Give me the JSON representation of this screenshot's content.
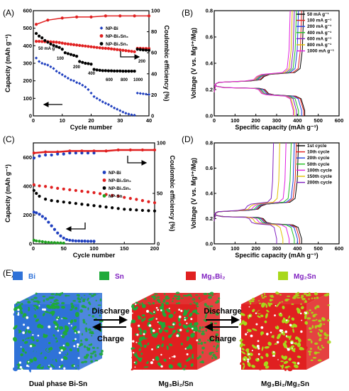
{
  "panels": {
    "A": "(A)",
    "B": "(B)",
    "C": "(C)",
    "D": "(D)",
    "E": "(E)"
  },
  "chart_data": [
    {
      "id": "A",
      "type": "scatter",
      "xlabel": "Cycle number",
      "ylabel": "Capacity (mAh g⁻¹)",
      "y2label": "Coulombic efficiency (%)",
      "xlim": [
        0,
        40
      ],
      "ylim": [
        0,
        600
      ],
      "y2lim": [
        0,
        100
      ],
      "xticks": [
        0,
        10,
        20,
        30,
        40
      ],
      "yticks": [
        0,
        100,
        200,
        300,
        400,
        500,
        600
      ],
      "y2ticks": [
        0,
        20,
        40,
        60,
        80,
        100
      ],
      "legend": [
        "NP-Bi",
        "NP-Bi₂Sn₃",
        "NP-Bi₁Sn₁"
      ],
      "rate_annotations": [
        "50 mA g⁻¹",
        "100",
        "200",
        "400",
        "600",
        "800",
        "1000",
        "200"
      ],
      "series": [
        {
          "name": "NP-Bi",
          "color": "#1f3fbf",
          "marker": "diamond",
          "x": [
            1,
            2,
            3,
            4,
            5,
            6,
            7,
            8,
            9,
            10,
            11,
            12,
            13,
            14,
            15,
            16,
            17,
            18,
            19,
            20,
            21,
            22,
            23,
            24,
            25,
            26,
            27,
            28,
            29,
            30,
            31,
            32,
            33,
            34,
            35,
            36,
            37,
            38,
            39,
            40
          ],
          "y": [
            330,
            310,
            300,
            295,
            290,
            280,
            270,
            255,
            245,
            235,
            225,
            215,
            205,
            200,
            190,
            185,
            175,
            165,
            150,
            130,
            110,
            100,
            90,
            80,
            72,
            65,
            55,
            45,
            38,
            30,
            22,
            15,
            10,
            6,
            4,
            130,
            128,
            126,
            124,
            122
          ]
        },
        {
          "name": "NP-Bi₂Sn₃",
          "color": "#e02020",
          "marker": "circle",
          "x": [
            1,
            2,
            3,
            4,
            5,
            6,
            7,
            8,
            9,
            10,
            11,
            12,
            13,
            14,
            15,
            16,
            17,
            18,
            19,
            20,
            21,
            22,
            23,
            24,
            25,
            26,
            27,
            28,
            29,
            30,
            31,
            32,
            33,
            34,
            35,
            36,
            37,
            38,
            39,
            40
          ],
          "y": [
            425,
            425,
            424,
            423,
            423,
            422,
            421,
            420,
            418,
            415,
            412,
            410,
            408,
            406,
            404,
            402,
            400,
            398,
            396,
            394,
            392,
            390,
            388,
            386,
            385,
            384,
            382,
            380,
            378,
            376,
            374,
            372,
            370,
            368,
            366,
            385,
            385,
            384,
            384,
            384
          ]
        },
        {
          "name": "NP-Bi₁Sn₁",
          "color": "#000000",
          "marker": "circle",
          "x": [
            1,
            2,
            3,
            4,
            5,
            6,
            7,
            8,
            9,
            10,
            11,
            12,
            13,
            14,
            15,
            16,
            17,
            18,
            19,
            20,
            21,
            22,
            23,
            24,
            25,
            26,
            27,
            28,
            29,
            30,
            31,
            32,
            33,
            34,
            35,
            36,
            37,
            38,
            39,
            40
          ],
          "y": [
            470,
            455,
            445,
            430,
            420,
            410,
            402,
            396,
            390,
            380,
            360,
            355,
            350,
            345,
            340,
            310,
            305,
            300,
            298,
            295,
            265,
            262,
            260,
            258,
            258,
            257,
            257,
            256,
            256,
            256,
            255,
            255,
            255,
            255,
            255,
            380,
            378,
            376,
            375,
            374
          ]
        },
        {
          "name": "CE",
          "color": "#e02020",
          "marker": "circle",
          "axis": "y2",
          "x": [
            1,
            5,
            10,
            15,
            20,
            25,
            30,
            35,
            40
          ],
          "y": [
            87,
            91,
            93,
            94,
            94,
            95,
            95,
            95,
            95
          ]
        }
      ]
    },
    {
      "id": "B",
      "type": "line",
      "xlabel": "Specific capacity (mAh g⁻¹)",
      "ylabel": "Voltage (V vs. Mg²⁺/Mg)",
      "xlim": [
        0,
        600
      ],
      "ylim": [
        0,
        0.8
      ],
      "xticks": [
        0,
        100,
        200,
        300,
        400,
        500,
        600
      ],
      "yticks": [
        0.0,
        0.2,
        0.4,
        0.6,
        0.8
      ],
      "series": [
        {
          "name": "50 mA g⁻¹",
          "color": "#000000",
          "discharge": 435,
          "charge": 430
        },
        {
          "name": "100 mA g⁻¹",
          "color": "#e02020",
          "discharge": 430,
          "charge": 420
        },
        {
          "name": "200 mA g⁻¹",
          "color": "#2040e0",
          "discharge": 420,
          "charge": 405
        },
        {
          "name": "400 mA g⁻¹",
          "color": "#20c020",
          "discharge": 405,
          "charge": 395
        },
        {
          "name": "600 mA g⁻¹",
          "color": "#8020c0",
          "discharge": 395,
          "charge": 385
        },
        {
          "name": "800 mA g⁻¹",
          "color": "#e0c000",
          "discharge": 385,
          "charge": 375
        },
        {
          "name": "1000 mA g⁻¹",
          "color": "#e020e0",
          "discharge": 380,
          "charge": 365
        }
      ]
    },
    {
      "id": "C",
      "type": "scatter",
      "xlabel": "Cycle number",
      "ylabel": "Capacity (mAh g⁻¹)",
      "y2label": "Coulombic efficiency (%)",
      "xlim": [
        0,
        200
      ],
      "ylim": [
        0,
        700
      ],
      "y2lim": [
        0,
        100
      ],
      "xticks": [
        0,
        50,
        100,
        150,
        200
      ],
      "yticks": [
        0,
        200,
        400,
        600
      ],
      "y2ticks": [
        0,
        50,
        100
      ],
      "legend": [
        "NP-Bi",
        "NP-Bi₂Sn₃",
        "NP-Bi₁Sn₁",
        "NP-Sn"
      ],
      "series": [
        {
          "name": "NP-Bi",
          "color": "#1f3fbf",
          "marker": "circle",
          "x": [
            1,
            5,
            10,
            15,
            20,
            25,
            30,
            35,
            40,
            45,
            50,
            55,
            60,
            65,
            70,
            75,
            80,
            85,
            90,
            95,
            100
          ],
          "y": [
            220,
            215,
            205,
            190,
            175,
            150,
            125,
            100,
            75,
            55,
            40,
            30,
            25,
            22,
            20,
            20,
            19,
            19,
            18,
            18,
            18
          ]
        },
        {
          "name": "NP-Bi₂Sn₃",
          "color": "#e02020",
          "marker": "circle",
          "x": [
            1,
            10,
            20,
            30,
            40,
            50,
            60,
            70,
            80,
            90,
            100,
            110,
            120,
            130,
            140,
            150,
            160,
            170,
            180,
            190,
            200
          ],
          "y": [
            410,
            402,
            398,
            392,
            385,
            380,
            375,
            370,
            365,
            360,
            355,
            348,
            342,
            336,
            330,
            322,
            315,
            308,
            300,
            292,
            285
          ]
        },
        {
          "name": "NP-Bi₁Sn₁",
          "color": "#000000",
          "marker": "circle",
          "x": [
            1,
            5,
            10,
            20,
            30,
            40,
            50,
            60,
            70,
            80,
            90,
            100,
            110,
            120,
            130,
            140,
            150,
            160,
            170,
            180,
            190,
            200
          ],
          "y": [
            370,
            350,
            330,
            310,
            300,
            295,
            290,
            285,
            280,
            275,
            270,
            265,
            260,
            255,
            250,
            245,
            240,
            238,
            235,
            232,
            230,
            228
          ]
        },
        {
          "name": "NP-Sn",
          "color": "#20a020",
          "marker": "circle",
          "x": [
            1,
            5,
            10,
            15,
            20,
            25,
            30,
            35,
            40,
            45,
            50
          ],
          "y": [
            25,
            20,
            18,
            15,
            12,
            10,
            9,
            8,
            7,
            6,
            5
          ]
        },
        {
          "name": "CE NP-Bi₂Sn₃",
          "color": "#e02020",
          "marker": "circle",
          "axis": "y2",
          "x": [
            1,
            20,
            40,
            60,
            80,
            100,
            120,
            140,
            160,
            180,
            200
          ],
          "y": [
            90,
            91,
            91,
            92,
            92,
            92,
            92,
            93,
            93,
            93,
            93
          ]
        },
        {
          "name": "CE NP-Bi",
          "color": "#1f3fbf",
          "marker": "circle",
          "axis": "y2",
          "x": [
            1,
            10,
            20,
            30,
            40,
            50,
            60,
            70,
            80,
            90,
            100
          ],
          "y": [
            85,
            87,
            88,
            88,
            89,
            89,
            90,
            90,
            90,
            90,
            90
          ]
        }
      ]
    },
    {
      "id": "D",
      "type": "line",
      "xlabel": "Specific capacity (mAh g⁻¹)",
      "ylabel": "Voltage (V vs. Mg²⁺/Mg)",
      "xlim": [
        0,
        600
      ],
      "ylim": [
        0,
        0.8
      ],
      "xticks": [
        0,
        100,
        200,
        300,
        400,
        500,
        600
      ],
      "yticks": [
        0.0,
        0.2,
        0.4,
        0.6,
        0.8
      ],
      "series": [
        {
          "name": "1st cycle",
          "color": "#000000",
          "discharge": 420,
          "charge": 405
        },
        {
          "name": "10th cycle",
          "color": "#e02020",
          "discharge": 410,
          "charge": 395
        },
        {
          "name": "20th cycle",
          "color": "#2040e0",
          "discharge": 400,
          "charge": 385
        },
        {
          "name": "50th cycle",
          "color": "#20c020",
          "discharge": 385,
          "charge": 370
        },
        {
          "name": "100th cycle",
          "color": "#e020e0",
          "discharge": 360,
          "charge": 345
        },
        {
          "name": "150th cycle",
          "color": "#e0c000",
          "discharge": 330,
          "charge": 315
        },
        {
          "name": "200th cycle",
          "color": "#8020c0",
          "discharge": 300,
          "charge": 285
        }
      ]
    }
  ],
  "schematic": {
    "legend": [
      {
        "label": "Bi",
        "color": "#2f72d8",
        "text_color": "#2f72d8"
      },
      {
        "label": "Sn",
        "color": "#1faa3a",
        "text_color": "#8020c0"
      },
      {
        "label": "Mg₃Bi₂",
        "color": "#e02020",
        "text_color": "#8020c0"
      },
      {
        "label": "Mg₂Sn",
        "color": "#a8d81a",
        "text_color": "#8020c0"
      }
    ],
    "cubes": [
      {
        "caption": "Dual phase Bi-Sn",
        "colors": [
          "#2f72d8",
          "#1faa3a"
        ]
      },
      {
        "caption": "Mg₃Bi₂/Sn",
        "colors": [
          "#e02020",
          "#1faa3a"
        ]
      },
      {
        "caption": "Mg₃Bi₂/Mg₂Sn",
        "colors": [
          "#e02020",
          "#a8d81a"
        ]
      }
    ],
    "arrows": [
      {
        "top": "Discharge",
        "bottom": "Charge"
      },
      {
        "top": "Discharge",
        "bottom": "Charge"
      }
    ]
  }
}
